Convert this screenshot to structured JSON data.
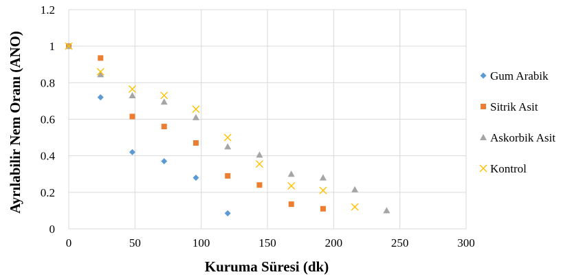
{
  "chart_data": {
    "type": "scatter",
    "title": "",
    "xlabel": "Kuruma Süresi (dk)",
    "ylabel": "Ayrılabilir Nem Oranı (ANO)",
    "xlim": [
      0,
      300
    ],
    "ylim": [
      0,
      1.2
    ],
    "x_ticks": [
      "0",
      "50",
      "100",
      "150",
      "200",
      "250",
      "300"
    ],
    "y_ticks": [
      "0",
      "0.2",
      "0.4",
      "0.6",
      "0.8",
      "1",
      "1.2"
    ],
    "grid": "vertical and horizontal gridlines",
    "legend_position": "right",
    "series": [
      {
        "name": "Gum Arabik",
        "marker": "diamond",
        "color": "#5b9bd5",
        "points": [
          {
            "x": 0,
            "y": 1.0
          },
          {
            "x": 24,
            "y": 0.72
          },
          {
            "x": 48,
            "y": 0.42
          },
          {
            "x": 72,
            "y": 0.37
          },
          {
            "x": 96,
            "y": 0.28
          },
          {
            "x": 120,
            "y": 0.085
          }
        ]
      },
      {
        "name": "Sitrik Asit",
        "marker": "square",
        "color": "#ed7d31",
        "points": [
          {
            "x": 0,
            "y": 1.0
          },
          {
            "x": 24,
            "y": 0.935
          },
          {
            "x": 48,
            "y": 0.615
          },
          {
            "x": 72,
            "y": 0.56
          },
          {
            "x": 96,
            "y": 0.47
          },
          {
            "x": 120,
            "y": 0.29
          },
          {
            "x": 144,
            "y": 0.24
          },
          {
            "x": 168,
            "y": 0.135
          },
          {
            "x": 192,
            "y": 0.11
          }
        ]
      },
      {
        "name": "Askorbik Asit",
        "marker": "triangle",
        "color": "#a5a5a5",
        "points": [
          {
            "x": 0,
            "y": 1.0
          },
          {
            "x": 24,
            "y": 0.845
          },
          {
            "x": 48,
            "y": 0.73
          },
          {
            "x": 72,
            "y": 0.695
          },
          {
            "x": 96,
            "y": 0.61
          },
          {
            "x": 120,
            "y": 0.45
          },
          {
            "x": 144,
            "y": 0.405
          },
          {
            "x": 168,
            "y": 0.3
          },
          {
            "x": 192,
            "y": 0.28
          },
          {
            "x": 216,
            "y": 0.215
          },
          {
            "x": 240,
            "y": 0.1
          }
        ]
      },
      {
        "name": "Kontrol",
        "marker": "x",
        "color": "#ffc000",
        "points": [
          {
            "x": 0,
            "y": 1.0
          },
          {
            "x": 24,
            "y": 0.86
          },
          {
            "x": 48,
            "y": 0.765
          },
          {
            "x": 72,
            "y": 0.73
          },
          {
            "x": 96,
            "y": 0.655
          },
          {
            "x": 120,
            "y": 0.5
          },
          {
            "x": 144,
            "y": 0.355
          },
          {
            "x": 168,
            "y": 0.235
          },
          {
            "x": 192,
            "y": 0.21
          },
          {
            "x": 216,
            "y": 0.12
          }
        ]
      }
    ]
  }
}
